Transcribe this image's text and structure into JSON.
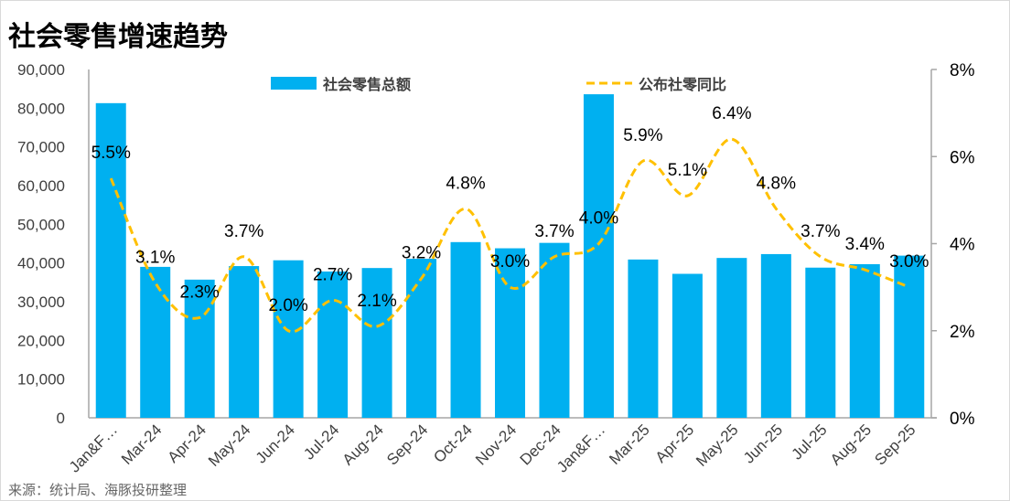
{
  "chart_data": {
    "type": "bar+line",
    "title": "社会零售增速趋势",
    "source": "来源：统计局、海豚投研整理",
    "categories": [
      "Jan&F…",
      "Mar-24",
      "Apr-24",
      "May-24",
      "Jun-24",
      "Jul-24",
      "Aug-24",
      "Sep-24",
      "Oct-24",
      "Nov-24",
      "Dec-24",
      "Jan&F…",
      "Mar-25",
      "Apr-25",
      "May-25",
      "Jun-25",
      "Jul-25",
      "Aug-25",
      "Sep-25"
    ],
    "series": [
      {
        "name": "社会零售总额",
        "type": "bar",
        "axis": "left",
        "color": "#00b0f0",
        "values": [
          81300,
          39000,
          35700,
          39200,
          40700,
          37800,
          38700,
          41100,
          45400,
          43800,
          45200,
          83600,
          40900,
          37200,
          41300,
          42300,
          38800,
          39700,
          41900
        ]
      },
      {
        "name": "公布社零同比",
        "type": "line",
        "axis": "right",
        "color": "#ffc000",
        "values": [
          5.5,
          3.1,
          2.3,
          3.7,
          2.0,
          2.7,
          2.1,
          3.2,
          4.8,
          3.0,
          3.7,
          4.0,
          5.9,
          5.1,
          6.4,
          4.8,
          3.7,
          3.4,
          3.0
        ],
        "labels": [
          "5.5%",
          "3.1%",
          "2.3%",
          "3.7%",
          "2.0%",
          "2.7%",
          "2.1%",
          "3.2%",
          "4.8%",
          "3.0%",
          "3.7%",
          "4.0%",
          "5.9%",
          "5.1%",
          "6.4%",
          "4.8%",
          "3.7%",
          "3.4%",
          "3.0%"
        ]
      }
    ],
    "y_left": {
      "range": [
        0,
        90000
      ],
      "ticks": [
        "0",
        "10,000",
        "20,000",
        "30,000",
        "40,000",
        "50,000",
        "60,000",
        "70,000",
        "80,000",
        "90,000"
      ]
    },
    "y_right": {
      "range": [
        0,
        8
      ],
      "ticks": [
        "0%",
        "2%",
        "4%",
        "6%",
        "8%"
      ]
    },
    "legend": "top",
    "grid": false
  }
}
